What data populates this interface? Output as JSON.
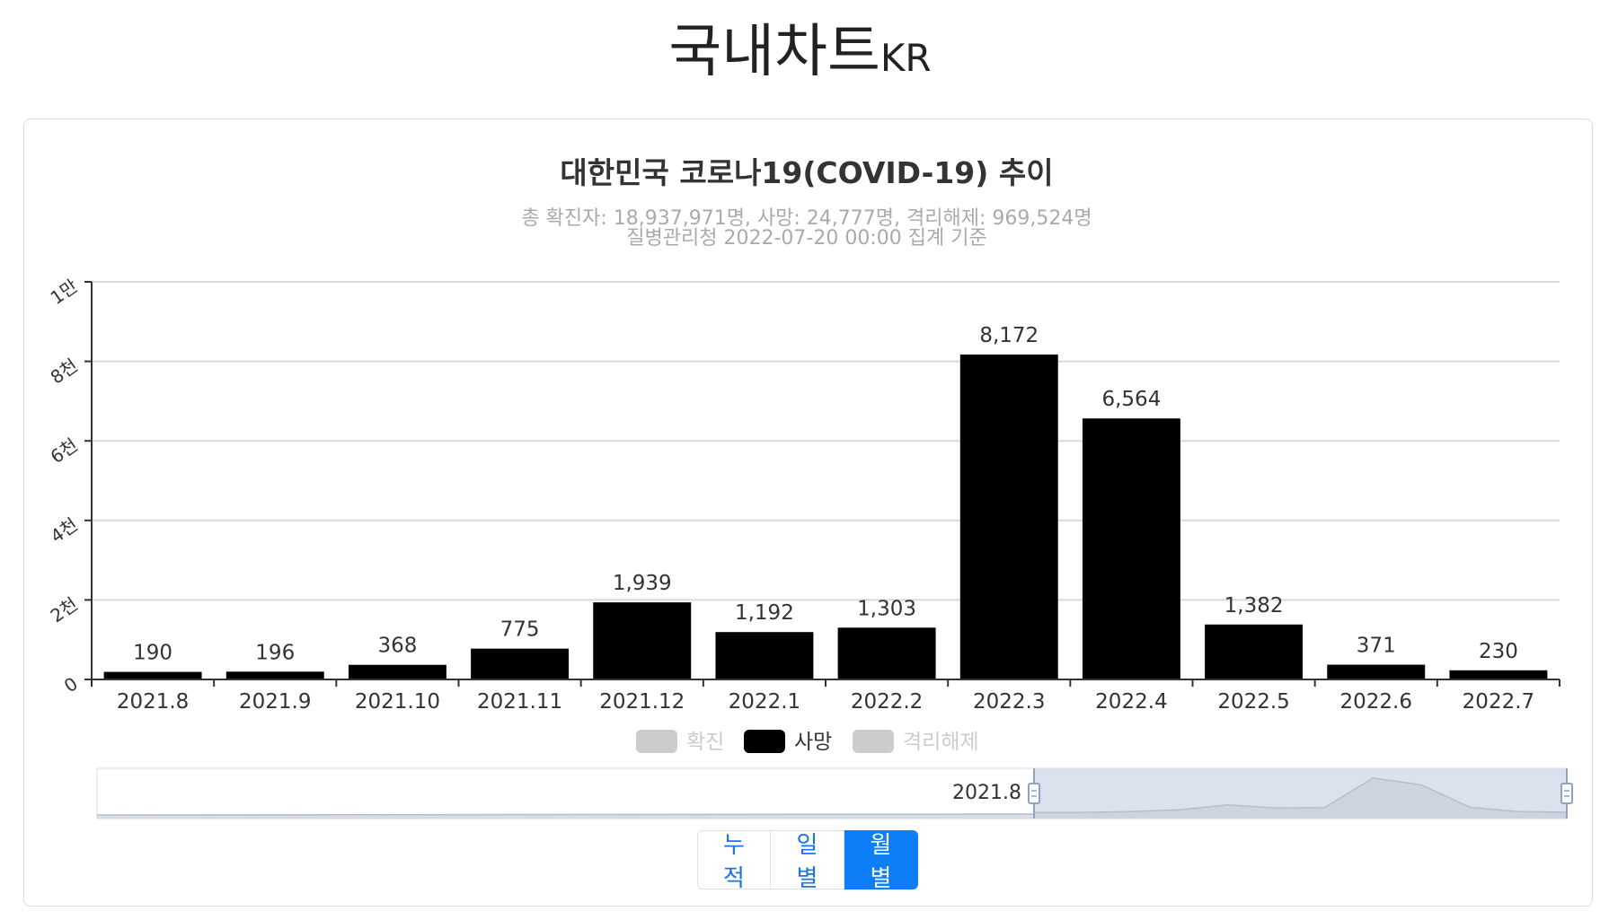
{
  "page": {
    "title": "국내차트",
    "title_suffix": "KR"
  },
  "chart_data": {
    "type": "bar",
    "title": "대한민국 코로나19(COVID-19) 추이",
    "subtitle": [
      "총 확진자: 18,937,971명, 사망: 24,777명, 격리해제: 969,524명",
      "질병관리청 2022-07-20 00:00 집계 기준"
    ],
    "categories": [
      "2021.8",
      "2021.9",
      "2021.10",
      "2021.11",
      "2021.12",
      "2022.1",
      "2022.2",
      "2022.3",
      "2022.4",
      "2022.5",
      "2022.6",
      "2022.7"
    ],
    "series": [
      {
        "name": "확진",
        "visible": false,
        "color": "#cccccc"
      },
      {
        "name": "사망",
        "visible": true,
        "color": "#000000",
        "values": [
          190,
          196,
          368,
          775,
          1939,
          1192,
          1303,
          8172,
          6564,
          1382,
          371,
          230
        ],
        "labels": [
          "190",
          "196",
          "368",
          "775",
          "1,939",
          "1,192",
          "1,303",
          "8,172",
          "6,564",
          "1,382",
          "371",
          "230"
        ]
      },
      {
        "name": "격리해제",
        "visible": false,
        "color": "#cccccc"
      }
    ],
    "ylim": [
      0,
      10000
    ],
    "yticks": [
      0,
      2000,
      4000,
      6000,
      8000,
      10000
    ],
    "ytick_labels": [
      "0",
      "2천",
      "4천",
      "6천",
      "8천",
      "1만"
    ],
    "grid": true,
    "legend": "bottom-center",
    "datazoom": {
      "label": "2021.8"
    }
  },
  "buttons": [
    {
      "label": "누적",
      "active": false
    },
    {
      "label": "일별",
      "active": false
    },
    {
      "label": "월별",
      "active": true
    }
  ],
  "colors": {
    "accent": "#0d7ef5",
    "bar": "#000000",
    "legend_inactive": "#cccccc"
  }
}
